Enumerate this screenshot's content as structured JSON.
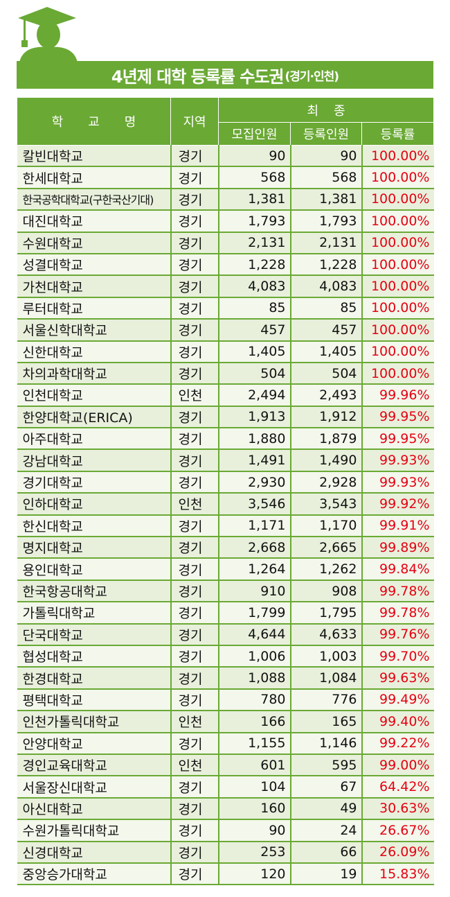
{
  "title": {
    "main": "4년제 대학 등록률 수도권",
    "sub": "(경기·인천)"
  },
  "colors": {
    "green": "#6aa934",
    "rate_red": "#e60012",
    "row_light": "#e8f0dc"
  },
  "icon": "graduate-silhouette-icon",
  "header": {
    "school": "학교명",
    "region": "지역",
    "final": "최종",
    "recruit": "모집인원",
    "enrolled": "등록인원",
    "rate": "등록률"
  },
  "rows": [
    {
      "school": "칼빈대학교",
      "region": "경기",
      "recruit": "90",
      "enrolled": "90",
      "rate": "100.00%"
    },
    {
      "school": "한세대학교",
      "region": "경기",
      "recruit": "568",
      "enrolled": "568",
      "rate": "100.00%"
    },
    {
      "school": "한국공학대학교(구한국산기대)",
      "region": "경기",
      "recruit": "1,381",
      "enrolled": "1,381",
      "rate": "100.00%"
    },
    {
      "school": "대진대학교",
      "region": "경기",
      "recruit": "1,793",
      "enrolled": "1,793",
      "rate": "100.00%"
    },
    {
      "school": "수원대학교",
      "region": "경기",
      "recruit": "2,131",
      "enrolled": "2,131",
      "rate": "100.00%"
    },
    {
      "school": "성결대학교",
      "region": "경기",
      "recruit": "1,228",
      "enrolled": "1,228",
      "rate": "100.00%"
    },
    {
      "school": "가천대학교",
      "region": "경기",
      "recruit": "4,083",
      "enrolled": "4,083",
      "rate": "100.00%"
    },
    {
      "school": "루터대학교",
      "region": "경기",
      "recruit": "85",
      "enrolled": "85",
      "rate": "100.00%"
    },
    {
      "school": "서울신학대학교",
      "region": "경기",
      "recruit": "457",
      "enrolled": "457",
      "rate": "100.00%"
    },
    {
      "school": "신한대학교",
      "region": "경기",
      "recruit": "1,405",
      "enrolled": "1,405",
      "rate": "100.00%"
    },
    {
      "school": "차의과학대학교",
      "region": "경기",
      "recruit": "504",
      "enrolled": "504",
      "rate": "100.00%"
    },
    {
      "school": "인천대학교",
      "region": "인천",
      "recruit": "2,494",
      "enrolled": "2,493",
      "rate": "99.96%"
    },
    {
      "school": "한양대학교(ERICA)",
      "region": "경기",
      "recruit": "1,913",
      "enrolled": "1,912",
      "rate": "99.95%"
    },
    {
      "school": "아주대학교",
      "region": "경기",
      "recruit": "1,880",
      "enrolled": "1,879",
      "rate": "99.95%"
    },
    {
      "school": "강남대학교",
      "region": "경기",
      "recruit": "1,491",
      "enrolled": "1,490",
      "rate": "99.93%"
    },
    {
      "school": "경기대학교",
      "region": "경기",
      "recruit": "2,930",
      "enrolled": "2,928",
      "rate": "99.93%"
    },
    {
      "school": "인하대학교",
      "region": "인천",
      "recruit": "3,546",
      "enrolled": "3,543",
      "rate": "99.92%"
    },
    {
      "school": "한신대학교",
      "region": "경기",
      "recruit": "1,171",
      "enrolled": "1,170",
      "rate": "99.91%"
    },
    {
      "school": "명지대학교",
      "region": "경기",
      "recruit": "2,668",
      "enrolled": "2,665",
      "rate": "99.89%"
    },
    {
      "school": "용인대학교",
      "region": "경기",
      "recruit": "1,264",
      "enrolled": "1,262",
      "rate": "99.84%"
    },
    {
      "school": "한국항공대학교",
      "region": "경기",
      "recruit": "910",
      "enrolled": "908",
      "rate": "99.78%"
    },
    {
      "school": "가톨릭대학교",
      "region": "경기",
      "recruit": "1,799",
      "enrolled": "1,795",
      "rate": "99.78%"
    },
    {
      "school": "단국대학교",
      "region": "경기",
      "recruit": "4,644",
      "enrolled": "4,633",
      "rate": "99.76%"
    },
    {
      "school": "협성대학교",
      "region": "경기",
      "recruit": "1,006",
      "enrolled": "1,003",
      "rate": "99.70%"
    },
    {
      "school": "한경대학교",
      "region": "경기",
      "recruit": "1,088",
      "enrolled": "1,084",
      "rate": "99.63%"
    },
    {
      "school": "평택대학교",
      "region": "경기",
      "recruit": "780",
      "enrolled": "776",
      "rate": "99.49%"
    },
    {
      "school": "인천가톨릭대학교",
      "region": "인천",
      "recruit": "166",
      "enrolled": "165",
      "rate": "99.40%"
    },
    {
      "school": "안양대학교",
      "region": "경기",
      "recruit": "1,155",
      "enrolled": "1,146",
      "rate": "99.22%"
    },
    {
      "school": "경인교육대학교",
      "region": "인천",
      "recruit": "601",
      "enrolled": "595",
      "rate": "99.00%"
    },
    {
      "school": "서울장신대학교",
      "region": "경기",
      "recruit": "104",
      "enrolled": "67",
      "rate": "64.42%"
    },
    {
      "school": "아신대학교",
      "region": "경기",
      "recruit": "160",
      "enrolled": "49",
      "rate": "30.63%"
    },
    {
      "school": "수원가톨릭대학교",
      "region": "경기",
      "recruit": "90",
      "enrolled": "24",
      "rate": "26.67%"
    },
    {
      "school": "신경대학교",
      "region": "경기",
      "recruit": "253",
      "enrolled": "66",
      "rate": "26.09%"
    },
    {
      "school": "중앙승가대학교",
      "region": "경기",
      "recruit": "120",
      "enrolled": "19",
      "rate": "15.83%"
    }
  ]
}
